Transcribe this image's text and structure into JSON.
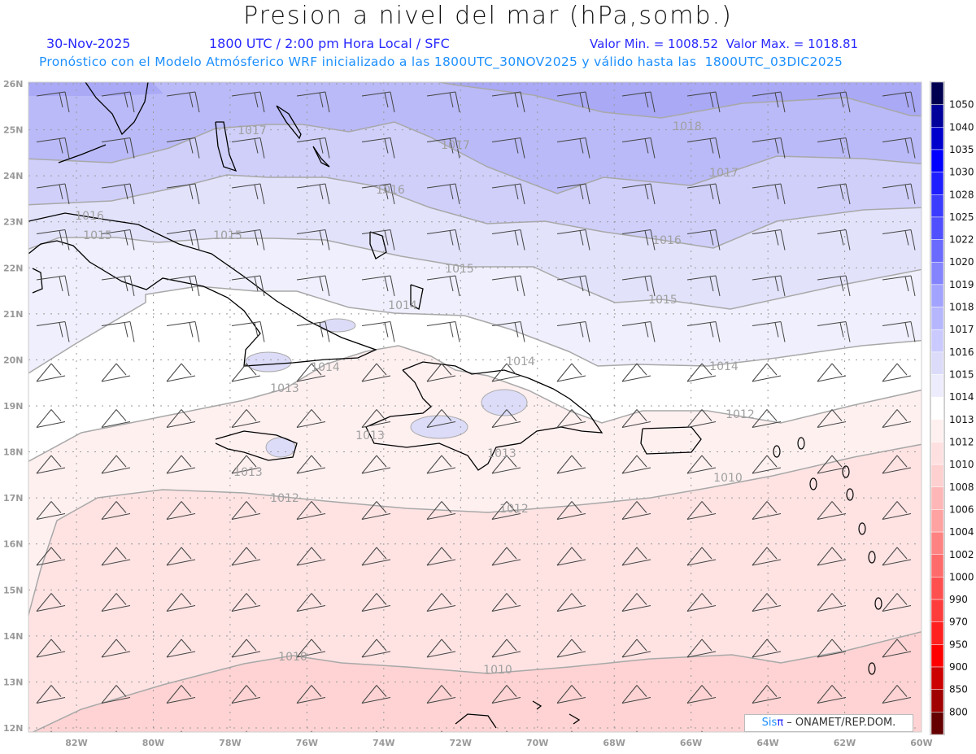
{
  "header": {
    "title": "Presion a nivel del mar (hPa,somb.)",
    "date": "30-Nov-2025",
    "time": "1800 UTC / 2:00 pm Hora Local / SFC",
    "min_max": "Valor Min. = 1008.52  Valor Max. = 1018.81",
    "forecast_info": "Pronóstico con el Modelo Atmósferico WRF inicializado a las 1800UTC_30NOV2025 y válido hasta las  1800UTC_03DIC2025"
  },
  "map": {
    "lat_labels": [
      "26N",
      "25N",
      "24N",
      "23N",
      "22N",
      "21N",
      "20N",
      "19N",
      "18N",
      "17N",
      "16N",
      "15N",
      "14N",
      "13N",
      "12N"
    ],
    "lon_labels": [
      "82W",
      "80W",
      "78W",
      "76W",
      "74W",
      "72W",
      "70W",
      "68W",
      "66W",
      "64W",
      "62W",
      "60W"
    ],
    "contour_labels": [
      "1017",
      "1018",
      "1017",
      "1017",
      "1016",
      "1016",
      "1016",
      "1015",
      "1015",
      "1015",
      "1015",
      "1014",
      "1014",
      "1014",
      "1014",
      "1013",
      "1013",
      "1013",
      "1013",
      "1012",
      "1012",
      "1012",
      "1010",
      "1010",
      "1010"
    ],
    "band_colors": {
      "above_1018": "#a9a9f6",
      "b1017": "#babaf8",
      "b1016": "#cfcffa",
      "b1015": "#e2e2fb",
      "b1014": "#efeffd",
      "b1013": "#ffffff",
      "b1012": "#fff0f0",
      "b1010": "#ffe3e3",
      "b1008": "#ffd3d3"
    }
  },
  "colorbar": {
    "labels": [
      "1050",
      "1040",
      "1035",
      "1030",
      "1028",
      "1025",
      "1022",
      "1020",
      "1019",
      "1018",
      "1017",
      "1016",
      "1015",
      "1014",
      "1013",
      "1012",
      "1010",
      "1008",
      "1006",
      "1004",
      "1002",
      "1000",
      "990",
      "970",
      "950",
      "900",
      "850",
      "800"
    ],
    "colors": [
      "#000050",
      "#00009a",
      "#0000cc",
      "#0000ff",
      "#1e1eff",
      "#3c3cff",
      "#5050ff",
      "#6a6aff",
      "#8484ff",
      "#a2a2ff",
      "#b6b6ff",
      "#cacaff",
      "#dcdcfa",
      "#ececfc",
      "#ffffff",
      "#fff0f0",
      "#ffe0e0",
      "#ffd0d0",
      "#ffb6b6",
      "#ffa2a2",
      "#ff8282",
      "#ff6a6a",
      "#ff5050",
      "#ff3c3c",
      "#ff2020",
      "#ff0000",
      "#cc0000",
      "#a00000",
      "#640000"
    ]
  },
  "credit": {
    "brand_a": "Sis",
    "brand_b": "π",
    "text": "–  ONAMET/REP.DOM."
  }
}
